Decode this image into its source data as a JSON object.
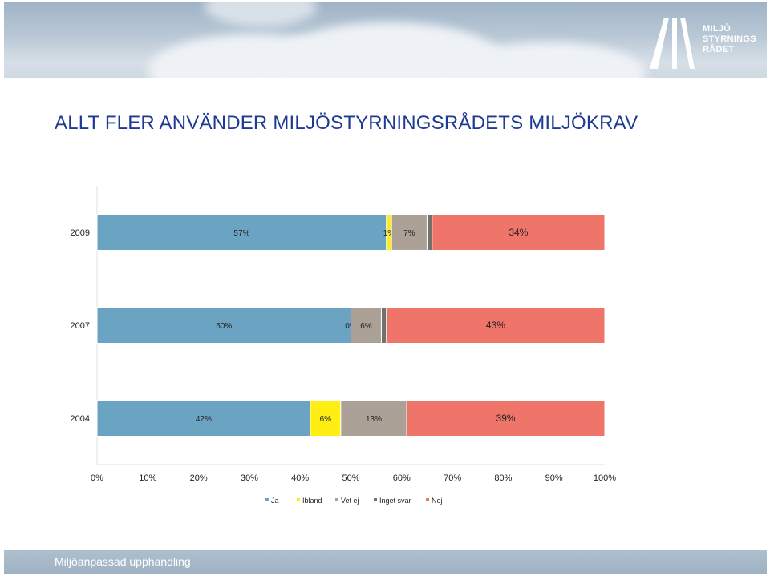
{
  "header": {
    "logo_lines": [
      "MILJÖ",
      "STYRNINGS",
      "RÅDET"
    ]
  },
  "title": "ALLT FLER ANVÄNDER MILJÖSTYRNINGSRÅDETS MILJÖKRAV",
  "footer": "Miljöanpassad upphandling",
  "colors": {
    "Ja": "#6ba3c2",
    "Ibland": "#ffee14",
    "Vet ej": "#aba197",
    "Inget svar": "#73716c",
    "Nej": "#ef756b"
  },
  "chart_data": {
    "type": "bar",
    "orientation": "horizontal",
    "stacked": true,
    "categories": [
      "2009",
      "2007",
      "2004"
    ],
    "series": [
      {
        "name": "Ja",
        "values": [
          57,
          50,
          42
        ],
        "labels": [
          "57%",
          "50%",
          "42%"
        ]
      },
      {
        "name": "Ibland",
        "values": [
          1,
          0,
          6
        ],
        "labels": [
          "1%",
          "0%",
          "6%"
        ]
      },
      {
        "name": "Vet ej",
        "values": [
          7,
          6,
          13
        ],
        "labels": [
          "7%",
          "6%",
          "13%"
        ]
      },
      {
        "name": "Inget svar",
        "values": [
          1,
          1,
          0
        ],
        "labels": [
          "",
          "",
          ""
        ]
      },
      {
        "name": "Nej",
        "values": [
          34,
          43,
          39
        ],
        "labels": [
          "34%",
          "43%",
          "39%"
        ]
      }
    ],
    "xlim": [
      0,
      100
    ],
    "xticks": [
      "0%",
      "10%",
      "20%",
      "30%",
      "40%",
      "50%",
      "60%",
      "70%",
      "80%",
      "90%",
      "100%"
    ],
    "legend": [
      "Ja",
      "Ibland",
      "Vet ej",
      "Inget svar",
      "Nej"
    ],
    "legend_position": "bottom"
  }
}
